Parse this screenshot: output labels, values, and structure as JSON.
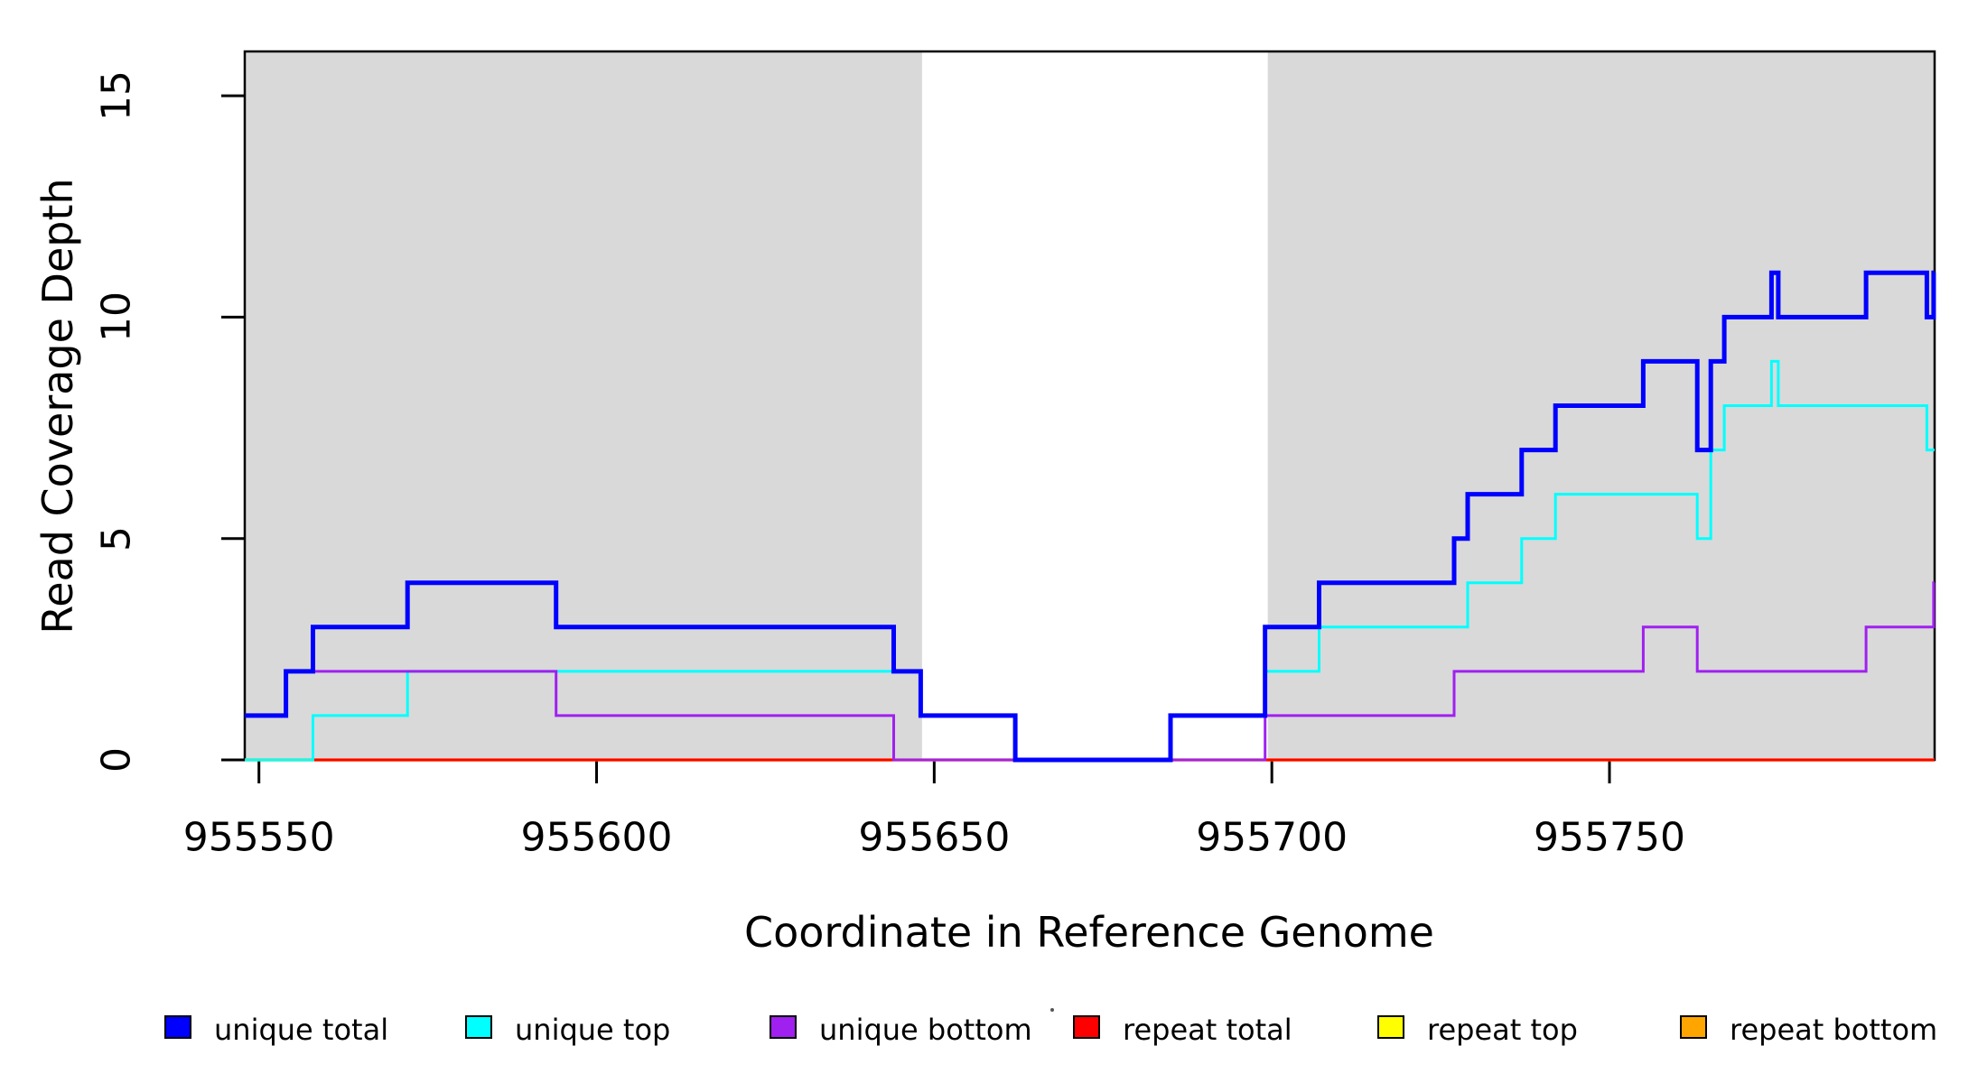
{
  "chart_data": {
    "type": "line",
    "subtype": "step",
    "title": "",
    "xlabel": "Coordinate in Reference Genome",
    "ylabel": "Read Coverage Depth",
    "xlim": [
      955547.9,
      955798.15
    ],
    "ylim": [
      0,
      16
    ],
    "x_ticks": [
      "955550",
      "955600",
      "955650",
      "955700",
      "955750"
    ],
    "x_tick_values": [
      955550,
      955600,
      955650,
      955700,
      955750
    ],
    "y_ticks": [
      "0",
      "5",
      "10",
      "15"
    ],
    "y_tick_values": [
      0,
      5,
      10,
      15
    ],
    "grid": false,
    "legend_position": "bottom",
    "shade_color": "#D9D9D9",
    "shaded_regions": [
      [
        955547.9,
        955648.2
      ],
      [
        955699.4,
        955798.15
      ]
    ],
    "series": [
      {
        "name": "unique total",
        "color": "#0000FF",
        "width": 5,
        "points": [
          [
            955547.9,
            1
          ],
          [
            955554,
            2
          ],
          [
            955558,
            3
          ],
          [
            955572,
            4
          ],
          [
            955594,
            3
          ],
          [
            955644,
            2
          ],
          [
            955648,
            1
          ],
          [
            955662,
            0
          ],
          [
            955685,
            1
          ],
          [
            955699,
            3
          ],
          [
            955707,
            4
          ],
          [
            955727,
            5
          ],
          [
            955729,
            6
          ],
          [
            955737,
            7
          ],
          [
            955742,
            8
          ],
          [
            955755,
            9
          ],
          [
            955763,
            7
          ],
          [
            955765,
            9
          ],
          [
            955767,
            10
          ],
          [
            955774,
            11
          ],
          [
            955775,
            10
          ],
          [
            955788,
            11
          ],
          [
            955797,
            10
          ],
          [
            955798,
            11
          ]
        ]
      },
      {
        "name": "unique top",
        "color": "#00FFFF",
        "width": 3,
        "points": [
          [
            955547.9,
            0
          ],
          [
            955558,
            1
          ],
          [
            955572,
            2
          ],
          [
            955648,
            1
          ],
          [
            955662,
            0
          ],
          [
            955685,
            1
          ],
          [
            955699,
            2
          ],
          [
            955707,
            3
          ],
          [
            955729,
            4
          ],
          [
            955737,
            5
          ],
          [
            955742,
            6
          ],
          [
            955763,
            5
          ],
          [
            955765,
            7
          ],
          [
            955767,
            8
          ],
          [
            955774,
            9
          ],
          [
            955775,
            8
          ],
          [
            955797,
            7
          ]
        ]
      },
      {
        "name": "unique bottom",
        "color": "#A020F0",
        "width": 3,
        "points": [
          [
            955547.9,
            1
          ],
          [
            955554,
            2
          ],
          [
            955594,
            1
          ],
          [
            955644,
            0
          ],
          [
            955699,
            1
          ],
          [
            955727,
            2
          ],
          [
            955755,
            3
          ],
          [
            955763,
            2
          ],
          [
            955788,
            3
          ],
          [
            955798,
            4
          ]
        ]
      },
      {
        "name": "repeat total",
        "color": "#FF0000",
        "width": 3,
        "points": [
          [
            955547.9,
            0
          ]
        ]
      },
      {
        "name": "repeat top",
        "color": "#FFFF00",
        "width": 3,
        "points": [
          [
            955547.9,
            0
          ]
        ]
      },
      {
        "name": "repeat bottom",
        "color": "#FFA500",
        "width": 3.5,
        "points": [
          [
            955547.9,
            0
          ]
        ]
      }
    ],
    "draw_order": [
      "repeat bottom",
      "repeat top",
      "repeat total",
      "unique top",
      "unique bottom",
      "unique total"
    ]
  },
  "legend": {
    "items": [
      {
        "label": "unique total",
        "color": "#0000FF"
      },
      {
        "label": "unique top",
        "color": "#00FFFF"
      },
      {
        "label": "unique bottom",
        "color": "#A020F0"
      },
      {
        "label": "repeat total",
        "color": "#FF0000"
      },
      {
        "label": "repeat top",
        "color": "#FFFF00"
      },
      {
        "label": "repeat bottom",
        "color": "#FFA500"
      }
    ]
  },
  "axis": {
    "x_title": "Coordinate in Reference Genome",
    "y_title": "Read Coverage Depth"
  }
}
